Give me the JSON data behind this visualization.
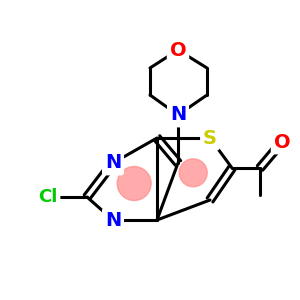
{
  "background_color": "#ffffff",
  "atom_colors": {
    "N": "#0000ff",
    "O": "#ff0000",
    "S": "#cccc00",
    "Cl": "#00cc00",
    "C": "#000000"
  },
  "bond_color": "#000000",
  "aromatic_ring_color": "#ff8888",
  "figsize": [
    3.0,
    3.0
  ],
  "dpi": 100
}
